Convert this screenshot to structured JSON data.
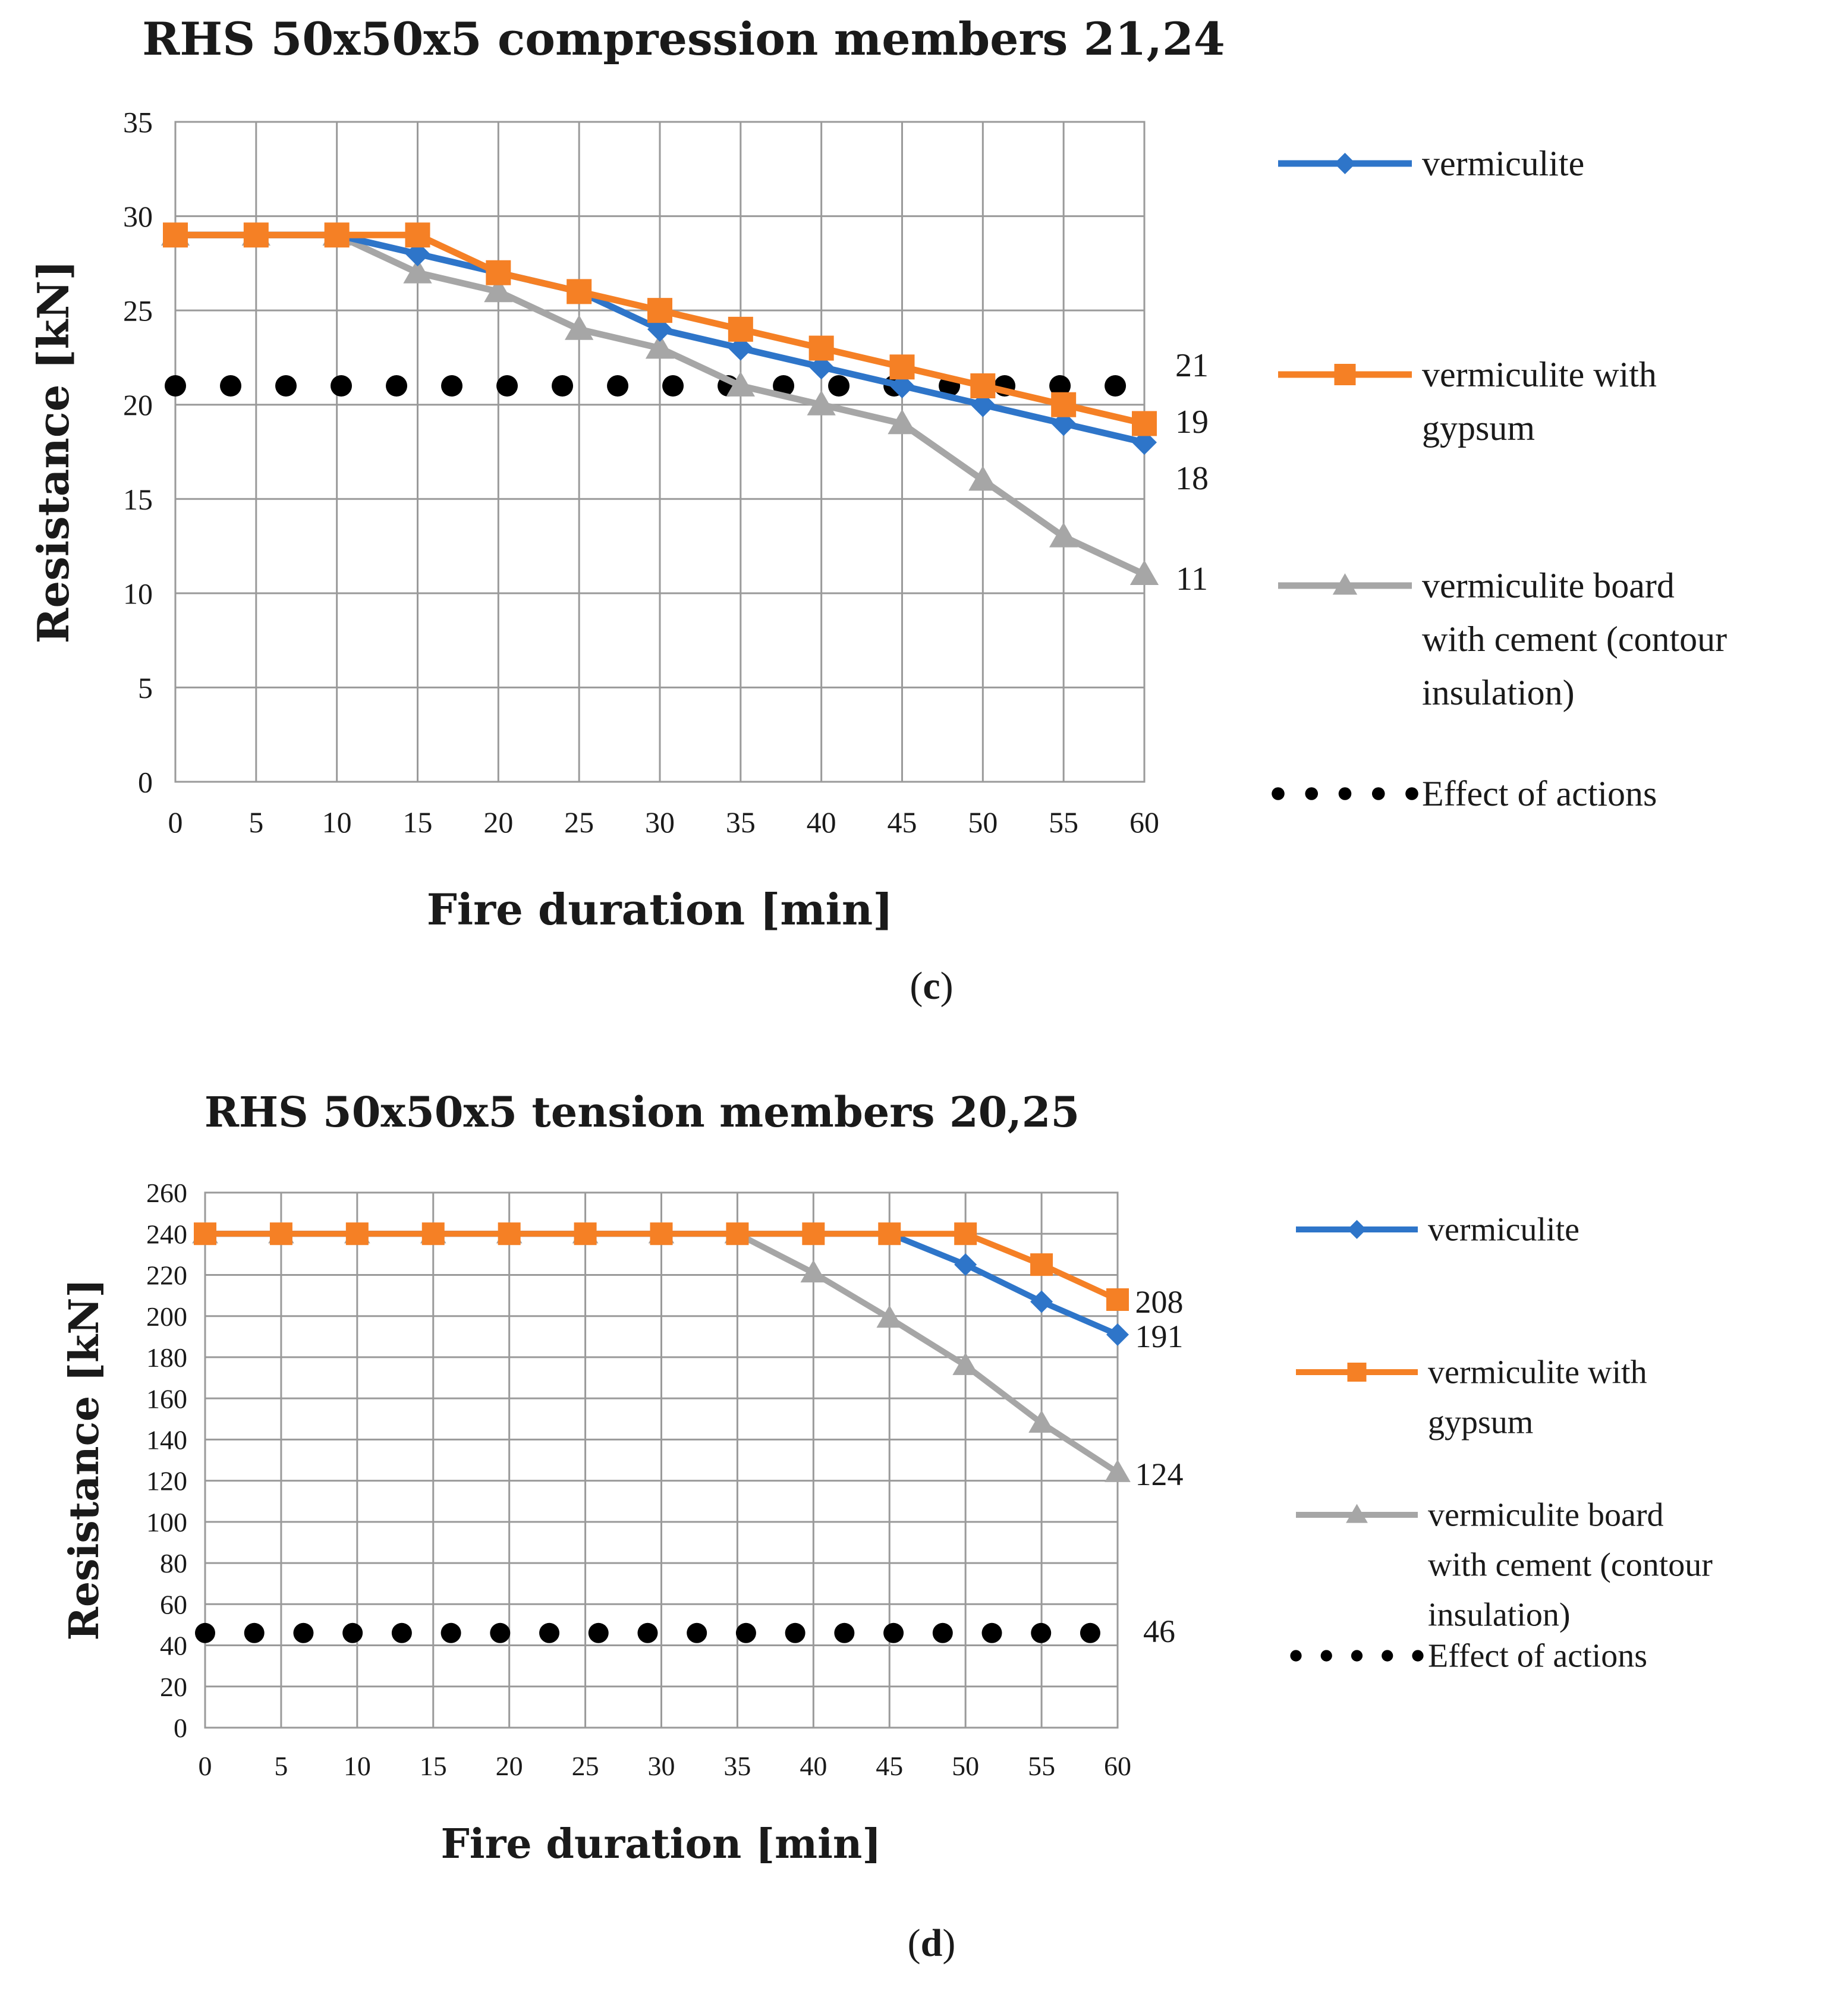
{
  "colors": {
    "vermiculite": "#2E75C9",
    "vermiculite_gypsum": "#F58025",
    "vermiculite_board": "#A6A6A6",
    "effect": "#000000",
    "grid": "#9a9a9a",
    "text": "#1a1a1a"
  },
  "chart_data": [
    {
      "id": "c",
      "type": "line",
      "title": "RHS 50x50x5 compression members 21,24",
      "xlabel": "Fire duration [min]",
      "ylabel": "Resistance [kN]",
      "xlim": [
        0,
        60
      ],
      "ylim": [
        0,
        35
      ],
      "grid": true,
      "xticks": [
        "0",
        "5",
        "10",
        "15",
        "20",
        "25",
        "30",
        "35",
        "40",
        "45",
        "50",
        "55",
        "60"
      ],
      "yticks": [
        "0",
        "5",
        "10",
        "15",
        "20",
        "25",
        "30",
        "35"
      ],
      "x": [
        0,
        5,
        10,
        15,
        20,
        25,
        30,
        35,
        40,
        45,
        50,
        55,
        60
      ],
      "series": [
        {
          "key": "vermiculite",
          "name": "vermiculite",
          "marker": "diamond",
          "values": [
            29,
            29,
            29,
            28,
            27,
            26,
            24,
            23,
            22,
            21,
            20,
            19,
            18
          ]
        },
        {
          "key": "vermiculite_gypsum",
          "name": "vermiculite with gypsum",
          "marker": "square",
          "values": [
            29,
            29,
            29,
            29,
            27,
            26,
            25,
            24,
            23,
            22,
            21,
            20,
            19
          ]
        },
        {
          "key": "vermiculite_board",
          "name": "vermiculite board with cement (contour insulation)",
          "marker": "triangle",
          "values": [
            29,
            29,
            29,
            27,
            26,
            24,
            23,
            21,
            20,
            19,
            16,
            13,
            11
          ]
        }
      ],
      "effect": {
        "key": "effect",
        "name": "Effect of actions",
        "value": 21,
        "dots": 18
      },
      "end_labels": [
        "21",
        "19",
        "18",
        "11"
      ],
      "legend": {
        "vermiculite": [
          "vermiculite"
        ],
        "vermiculite_gypsum": [
          "vermiculite with",
          "gypsum"
        ],
        "vermiculite_board": [
          "vermiculite board",
          "with cement (contour",
          "insulation)"
        ],
        "effect": [
          "Effect of actions"
        ]
      },
      "legend_position": "right",
      "caption": {
        "open": "(",
        "letter": "c",
        "close": ")"
      }
    },
    {
      "id": "d",
      "type": "line",
      "title": "RHS 50x50x5 tension members 20,25",
      "xlabel": "Fire duration [min]",
      "ylabel": "Resistance [kN]",
      "xlim": [
        0,
        60
      ],
      "ylim": [
        0,
        260
      ],
      "grid": true,
      "xticks": [
        "0",
        "5",
        "10",
        "15",
        "20",
        "25",
        "30",
        "35",
        "40",
        "45",
        "50",
        "55",
        "60"
      ],
      "yticks": [
        "0",
        "20",
        "40",
        "60",
        "80",
        "100",
        "120",
        "140",
        "160",
        "180",
        "200",
        "220",
        "240",
        "260"
      ],
      "x": [
        0,
        5,
        10,
        15,
        20,
        25,
        30,
        35,
        40,
        45,
        50,
        55,
        60
      ],
      "series": [
        {
          "key": "vermiculite",
          "name": "vermiculite",
          "marker": "diamond",
          "values": [
            240,
            240,
            240,
            240,
            240,
            240,
            240,
            240,
            240,
            240,
            225,
            207,
            191
          ]
        },
        {
          "key": "vermiculite_gypsum",
          "name": "vermiculite with gypsum",
          "marker": "square",
          "values": [
            240,
            240,
            240,
            240,
            240,
            240,
            240,
            240,
            240,
            240,
            240,
            225,
            208
          ]
        },
        {
          "key": "vermiculite_board",
          "name": "vermiculite board with cement (contour insulation)",
          "marker": "triangle",
          "values": [
            240,
            240,
            240,
            240,
            240,
            240,
            240,
            240,
            221,
            199,
            176,
            148,
            124
          ]
        }
      ],
      "effect": {
        "key": "effect",
        "name": "Effect of actions",
        "value": 46,
        "dots": 19
      },
      "end_labels": [
        "208",
        "191",
        "124",
        "46"
      ],
      "legend": {
        "vermiculite": [
          "vermiculite"
        ],
        "vermiculite_gypsum": [
          "vermiculite with",
          "gypsum"
        ],
        "vermiculite_board": [
          "vermiculite board",
          "with cement (contour",
          "insulation)"
        ],
        "effect": [
          "Effect of actions"
        ]
      },
      "legend_position": "right",
      "caption": {
        "open": "(",
        "letter": "d",
        "close": ")"
      }
    }
  ]
}
